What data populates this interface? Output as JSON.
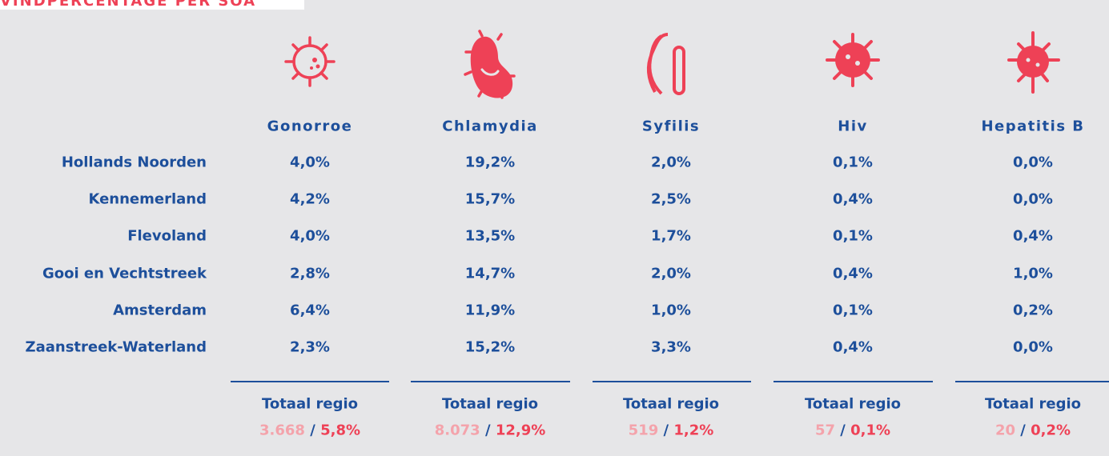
{
  "header": {
    "title": "VINDPERCENTAGE PER SOA"
  },
  "table": {
    "columns": [
      "Gonorroe",
      "Chlamydia",
      "Syfilis",
      "Hiv",
      "Hepatitis B"
    ],
    "rows": [
      {
        "region": "Hollands Noorden",
        "values": [
          "4,0%",
          "19,2%",
          "2,0%",
          "0,1%",
          "0,0%"
        ]
      },
      {
        "region": "Kennemerland",
        "values": [
          "4,2%",
          "15,7%",
          "2,5%",
          "0,4%",
          "0,0%"
        ]
      },
      {
        "region": "Flevoland",
        "values": [
          "4,0%",
          "13,5%",
          "1,7%",
          "0,1%",
          "0,4%"
        ]
      },
      {
        "region": "Gooi en Vechtstreek",
        "values": [
          "2,8%",
          "14,7%",
          "2,0%",
          "0,4%",
          "1,0%"
        ]
      },
      {
        "region": "Amsterdam",
        "values": [
          "6,4%",
          "11,9%",
          "1,0%",
          "0,1%",
          "0,2%"
        ]
      },
      {
        "region": "Zaanstreek-Waterland",
        "values": [
          "2,3%",
          "15,2%",
          "3,3%",
          "0,4%",
          "0,0%"
        ]
      }
    ]
  },
  "totals": {
    "separator": "/",
    "items": [
      {
        "label": "Totaal regio",
        "count": "3.668",
        "percent": "5,8%"
      },
      {
        "label": "Totaal regio",
        "count": "8.073",
        "percent": "12,9%"
      },
      {
        "label": "Totaal regio",
        "count": "519",
        "percent": "1,2%"
      },
      {
        "label": "Totaal regio",
        "count": "57",
        "percent": "0,1%"
      },
      {
        "label": "Totaal regio",
        "count": "20",
        "percent": "0,2%"
      }
    ]
  }
}
